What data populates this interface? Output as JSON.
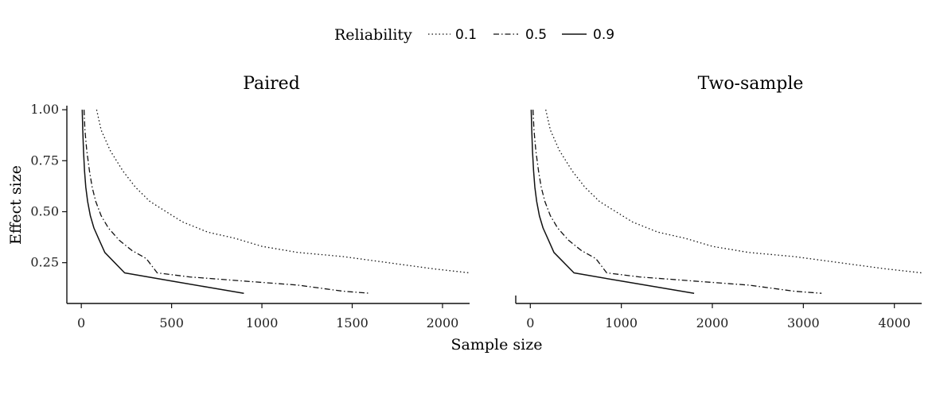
{
  "legend": {
    "title": "Reliability",
    "placement": "top-center",
    "entries": [
      {
        "label": "0.1",
        "linetype": "dotted"
      },
      {
        "label": "0.5",
        "linetype": "dashdot"
      },
      {
        "label": "0.9",
        "linetype": "solid"
      }
    ]
  },
  "xlabel": "Sample size",
  "ylabel": "Effect size",
  "line_color": "#111111",
  "chart_data": [
    {
      "type": "line",
      "title": "Paired",
      "xlim": [
        -80,
        2150
      ],
      "ylim": [
        0.05,
        1.02
      ],
      "xticks": [
        0,
        500,
        1000,
        1500,
        2000
      ],
      "xtick_labels": [
        "0",
        "500",
        "1000",
        "1500",
        "2000"
      ],
      "yticks": [
        0.25,
        0.5,
        0.75,
        1.0
      ],
      "ytick_labels": [
        "0.25",
        "0.50",
        "0.75",
        "1.00"
      ],
      "grid": false,
      "series": [
        {
          "name": "0.1",
          "linetype": "dotted",
          "x": [
            85,
            110,
            160,
            230,
            300,
            380,
            470,
            560,
            700,
            850,
            1000,
            1200,
            1450,
            1700,
            1950,
            2150
          ],
          "y": [
            1.0,
            0.9,
            0.8,
            0.7,
            0.62,
            0.55,
            0.5,
            0.45,
            0.4,
            0.37,
            0.33,
            0.3,
            0.28,
            0.25,
            0.22,
            0.2
          ]
        },
        {
          "name": "0.5",
          "linetype": "dashdot",
          "x": [
            15,
            20,
            30,
            45,
            60,
            80,
            110,
            150,
            210,
            280,
            360,
            420,
            600,
            900,
            1200,
            1450,
            1600
          ],
          "y": [
            1.0,
            0.9,
            0.8,
            0.7,
            0.62,
            0.55,
            0.48,
            0.42,
            0.36,
            0.31,
            0.27,
            0.2,
            0.18,
            0.16,
            0.14,
            0.11,
            0.1
          ]
        },
        {
          "name": "0.9",
          "linetype": "solid",
          "x": [
            5,
            8,
            12,
            18,
            25,
            35,
            50,
            70,
            100,
            130,
            240,
            500,
            700,
            900
          ],
          "y": [
            1.0,
            0.9,
            0.8,
            0.7,
            0.62,
            0.55,
            0.48,
            0.42,
            0.36,
            0.3,
            0.2,
            0.16,
            0.13,
            0.1
          ]
        }
      ]
    },
    {
      "type": "line",
      "title": "Two-sample",
      "xlim": [
        -160,
        4300
      ],
      "ylim": [
        0.05,
        1.02
      ],
      "xticks": [
        0,
        1000,
        2000,
        3000,
        4000
      ],
      "xtick_labels": [
        "0",
        "1000",
        "2000",
        "3000",
        "4000"
      ],
      "yticks": [],
      "ytick_labels": [],
      "grid": false,
      "series": [
        {
          "name": "0.1",
          "linetype": "dotted",
          "x": [
            170,
            220,
            320,
            460,
            600,
            760,
            940,
            1120,
            1400,
            1700,
            2000,
            2400,
            2900,
            3400,
            3900,
            4300
          ],
          "y": [
            1.0,
            0.9,
            0.8,
            0.7,
            0.62,
            0.55,
            0.5,
            0.45,
            0.4,
            0.37,
            0.33,
            0.3,
            0.28,
            0.25,
            0.22,
            0.2
          ]
        },
        {
          "name": "0.5",
          "linetype": "dashdot",
          "x": [
            30,
            40,
            60,
            90,
            120,
            160,
            220,
            300,
            420,
            560,
            720,
            840,
            1200,
            1800,
            2400,
            2900,
            3200
          ],
          "y": [
            1.0,
            0.9,
            0.8,
            0.7,
            0.62,
            0.55,
            0.48,
            0.42,
            0.36,
            0.31,
            0.27,
            0.2,
            0.18,
            0.16,
            0.14,
            0.11,
            0.1
          ]
        },
        {
          "name": "0.9",
          "linetype": "solid",
          "x": [
            10,
            16,
            24,
            36,
            50,
            70,
            100,
            140,
            200,
            260,
            480,
            1000,
            1400,
            1800
          ],
          "y": [
            1.0,
            0.9,
            0.8,
            0.7,
            0.62,
            0.55,
            0.48,
            0.42,
            0.36,
            0.3,
            0.2,
            0.16,
            0.13,
            0.1
          ]
        }
      ]
    }
  ]
}
